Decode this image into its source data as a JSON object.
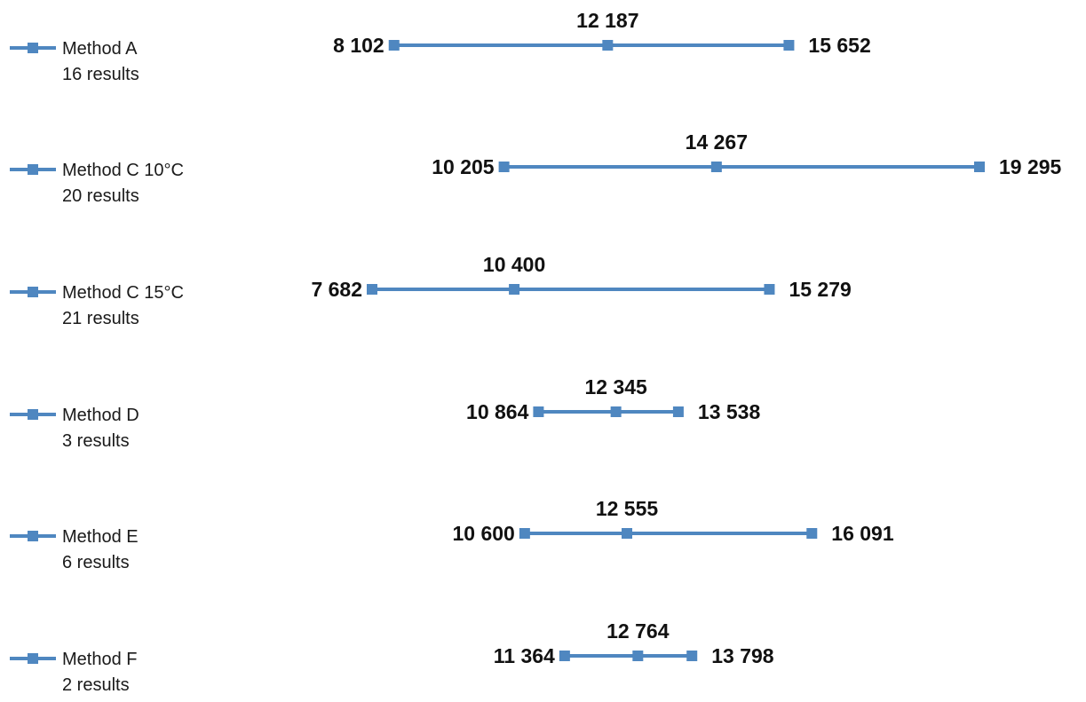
{
  "chart_data": {
    "type": "range",
    "series_color": "#4f87c0",
    "number_format": "space-thousands",
    "series": [
      {
        "name": "Method A",
        "sublabel": "16 results",
        "min": 8102,
        "median": 12187,
        "max": 15652,
        "min_label": "8 102",
        "median_label": "12 187",
        "max_label": "15 652"
      },
      {
        "name": "Method C    10°C",
        "sublabel": "20 results",
        "min": 10205,
        "median": 14267,
        "max": 19295,
        "min_label": "10 205",
        "median_label": "14 267",
        "max_label": "19 295"
      },
      {
        "name": "Method C 15°C",
        "sublabel": "21 results",
        "min": 7682,
        "median": 10400,
        "max": 15279,
        "min_label": "7 682",
        "median_label": "10 400",
        "max_label": "15 279"
      },
      {
        "name": "Method D",
        "sublabel": "3 results",
        "min": 10864,
        "median": 12345,
        "max": 13538,
        "min_label": "10 864",
        "median_label": "12 345",
        "max_label": "13 538"
      },
      {
        "name": "Method E",
        "sublabel": "6 results",
        "min": 10600,
        "median": 12555,
        "max": 16091,
        "min_label": "10 600",
        "median_label": "12 555",
        "max_label": "16 091"
      },
      {
        "name": "Method F",
        "sublabel": "2 results",
        "min": 11364,
        "median": 12764,
        "max": 13798,
        "min_label": "11 364",
        "median_label": "12 764",
        "max_label": "13 798"
      }
    ],
    "legend_position": "left",
    "grid": false
  }
}
